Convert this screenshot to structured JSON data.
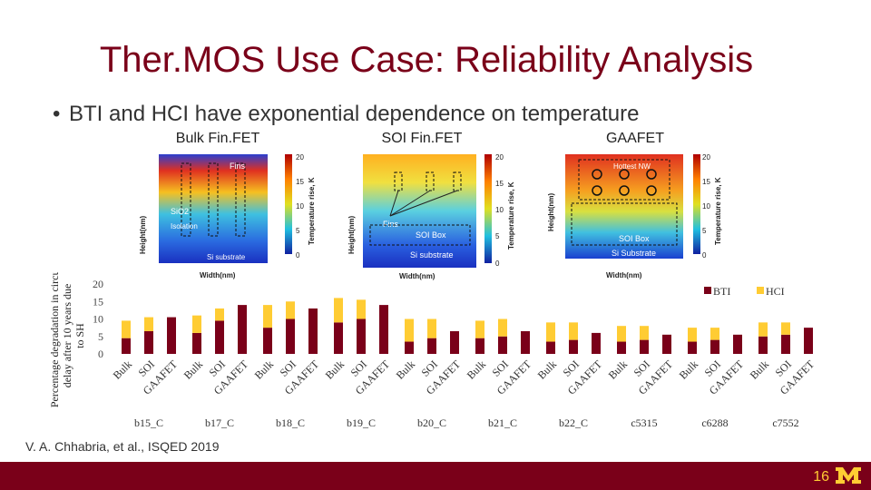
{
  "slide": {
    "title": "Ther.MOS Use Case: Reliability Analysis",
    "bullet": "BTI and HCI have exponential dependence on temperature",
    "citation": "V. A. Chhabria, et al., ISQED 2019",
    "page_number": "16",
    "logo": "university-m-logo"
  },
  "heatmaps": [
    {
      "title": "Bulk Fin.FET",
      "ylabel": "Height(nm)",
      "xlabel": "Width(nm)",
      "colorbar_label": "Temperature rise, K",
      "colorbar_ticks": [
        "20",
        "15",
        "10",
        "5",
        "0"
      ],
      "annotations": [
        "Fins",
        "SiO2",
        "Isolation",
        "Si substrate"
      ]
    },
    {
      "title": "SOI Fin.FET",
      "ylabel": "Height(nm)",
      "xlabel": "Width(nm)",
      "colorbar_label": "Temperature rise, K",
      "colorbar_ticks": [
        "20",
        "15",
        "10",
        "5",
        "0"
      ],
      "annotations": [
        "Fins",
        "SOI Box",
        "Si substrate"
      ]
    },
    {
      "title": "GAAFET",
      "ylabel": "Height(nm)",
      "xlabel": "Width(nm)",
      "colorbar_label": "Temperature rise, K",
      "colorbar_ticks": [
        "20",
        "15",
        "10",
        "5",
        "0"
      ],
      "annotations": [
        "Hottest NW",
        "SOI Box",
        "Si Substrate"
      ]
    }
  ],
  "chart_data": {
    "type": "bar",
    "stacked": true,
    "ylabel": "Percentage degradation in circuit delay after 10 years due to SH",
    "ylim": [
      0,
      20
    ],
    "yticks": [
      0,
      5,
      10,
      15,
      20
    ],
    "legend": [
      "BTI",
      "HCI"
    ],
    "legend_position": "top-right",
    "device_labels": [
      "Bulk",
      "SOI",
      "GAAFET"
    ],
    "groups": [
      "b15_C",
      "b17_C",
      "b18_C",
      "b19_C",
      "b20_C",
      "b21_C",
      "b22_C",
      "c5315",
      "c6288",
      "c7552"
    ],
    "series": [
      {
        "name": "BTI",
        "color": "#7a0019",
        "values": [
          4.5,
          6.5,
          10.5,
          6,
          9.5,
          14,
          7.5,
          10,
          13,
          9,
          10,
          14,
          3.5,
          4.5,
          6.5,
          4.5,
          5,
          6.5,
          3.5,
          4,
          6,
          3.5,
          4,
          5.5,
          3.5,
          4,
          5.5,
          5,
          5.5,
          7.5
        ]
      },
      {
        "name": "HCI",
        "color": "#ffcc33",
        "values": [
          5,
          4,
          0,
          5,
          3.5,
          0,
          6.5,
          5,
          0,
          7,
          5.5,
          0,
          6.5,
          5.5,
          0,
          5,
          5,
          0,
          5.5,
          5,
          0,
          4.5,
          4,
          0,
          4,
          3.5,
          0,
          4,
          3.5,
          0
        ]
      }
    ]
  }
}
